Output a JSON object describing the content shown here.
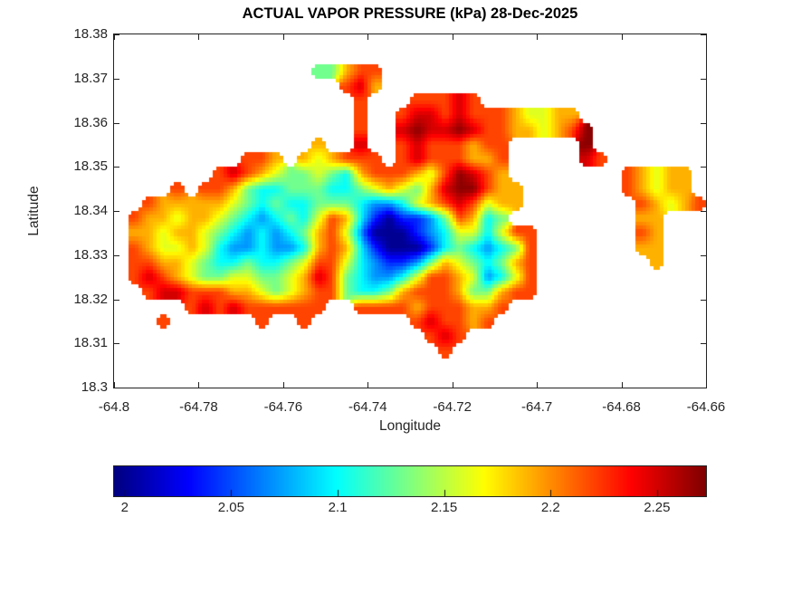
{
  "chart_data": {
    "type": "heatmap",
    "title": "ACTUAL VAPOR PRESSURE (kPa) 28-Dec-2025",
    "xlabel": "Longitude",
    "ylabel": "Latitude",
    "units": "kPa",
    "xlim": [
      -64.8,
      -64.66
    ],
    "ylim": [
      18.3,
      18.38
    ],
    "xticks": [
      -64.8,
      -64.78,
      -64.76,
      -64.74,
      -64.72,
      -64.7,
      -64.68,
      -64.66
    ],
    "xtick_labels": [
      "-64.8",
      "-64.78",
      "-64.76",
      "-64.74",
      "-64.72",
      "-64.7",
      "-64.68",
      "-64.66"
    ],
    "yticks": [
      18.3,
      18.31,
      18.32,
      18.33,
      18.34,
      18.35,
      18.36,
      18.37,
      18.38
    ],
    "ytick_labels": [
      "18.3",
      "18.31",
      "18.32",
      "18.33",
      "18.34",
      "18.35",
      "18.36",
      "18.37",
      "18.38"
    ],
    "grid_lines": false,
    "colormap": "jet",
    "color_range": [
      1.995,
      2.273
    ],
    "colorbar": {
      "orientation": "horizontal",
      "position": "below",
      "ticks": [
        2,
        2.05,
        2.1,
        2.15,
        2.2,
        2.25
      ],
      "tick_labels": [
        "2",
        "2.05",
        "2.1",
        "2.15",
        "2.2",
        "2.25"
      ]
    },
    "grid": {
      "comment": "Coarse raster of the island heat field (kPa). Rows top-to-bottom lat 18.38->18.30, cols lon -64.80->-64.66. '.' = sea (no data).",
      "nrows": 24,
      "ncols": 42,
      "lon_start": -64.8,
      "lon_step": 0.0033333,
      "lat_start": 18.38,
      "lat_step": -0.0033333,
      "value_key": {
        ".": null,
        "a": 2.0,
        "b": 2.04,
        "c": 2.07,
        "d": 2.1,
        "e": 2.13,
        "f": 2.16,
        "g": 2.19,
        "h": 2.22,
        "i": 2.25,
        "j": 2.27
      },
      "rows": [
        "..........................................",
        "..........................................",
        "..............eeghh.......................",
        "................hig.......................",
        ".................h...hhhih................",
        ".................h..hiihihhhgffgg.........",
        ".................h..ijiijihhggfghj........",
        "..............g..i..hihhhghh.....j........",
        ".........hhg.gfghhh.hihhhggh.....ih.......",
        ".......hihgfeefedghhhgfhjihg........hgfgg.",
        "....h.hhgeddeeeddefgfegijjhgg.......hgfgg.",
        "..hgggggfededdeeedccdfghihfgg........hgfgh",
        ".hggfggfedcdedfhgdbabbcehgde.........gg...",
        ".ggfggfedcdcdeghfcaaabcdffdfhh.......hg...",
        ".hgffgfdccdccdghgdbaaabdedcdeh.......gg...",
        ".hhggfeddeddefhhfdcbbcegfedegh........g...",
        ".hihgfeeffeefgihedccdfhhgfcdfh............",
        "..hiihhhggfefghheddeghhhgeeghh............",
        ".....hihihhhhhh..hhhhghhhggh..............",
        "...h......h..h.......hihhgh...............",
        "......................hih.................",
        ".......................h..................",
        "..........................................",
        ".........................................."
      ]
    }
  }
}
